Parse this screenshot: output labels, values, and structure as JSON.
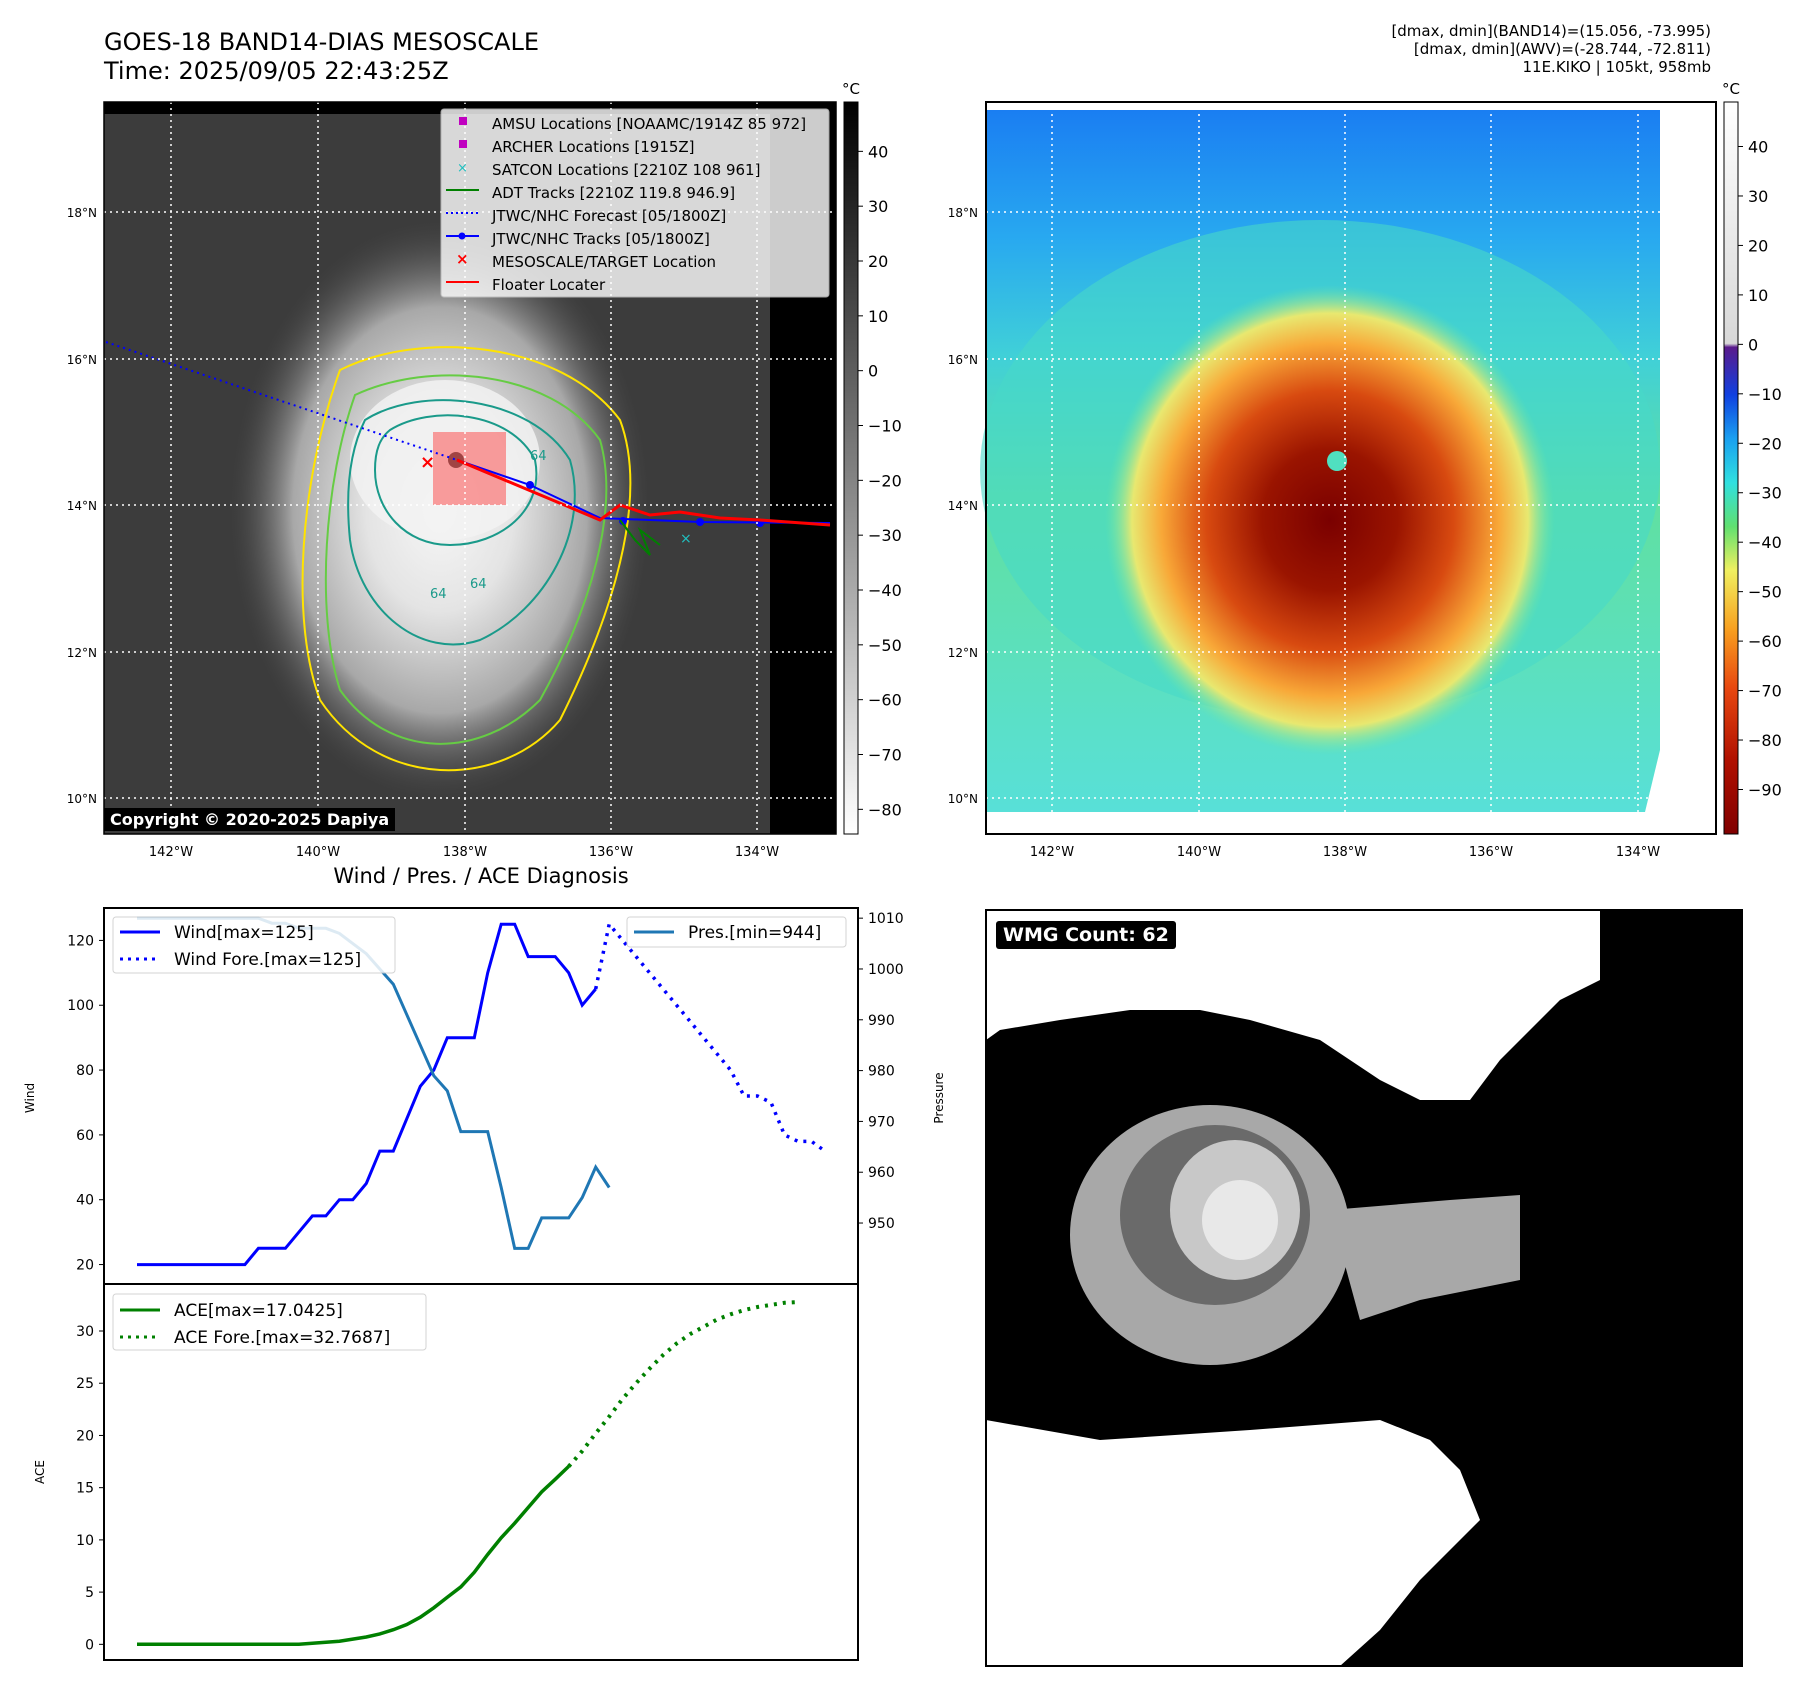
{
  "header": {
    "title_line1": "GOES-18 BAND14-DIAS MESOSCALE",
    "title_line2": "Time: 2025/09/05 22:43:25Z",
    "info_line1": "[dmax, dmin](BAND14)=(15.056, -73.995)",
    "info_line2": "[dmax, dmin](AWV)=(-28.744, -72.811)",
    "info_line3": "11E.KIKO | 105kt, 958mb"
  },
  "map_axes": {
    "lat_labels": [
      "18°N",
      "16°N",
      "14°N",
      "12°N",
      "10°N"
    ],
    "lon_labels": [
      "142°W",
      "140°W",
      "138°W",
      "136°W",
      "134°W"
    ],
    "unit": "°C"
  },
  "colorbar_left": {
    "ticks": [
      "40",
      "30",
      "20",
      "10",
      "0",
      "−10",
      "−20",
      "−30",
      "−40",
      "−50",
      "−60",
      "−70",
      "−80"
    ]
  },
  "colorbar_right": {
    "ticks": [
      "40",
      "30",
      "20",
      "10",
      "0",
      "−10",
      "−20",
      "−30",
      "−40",
      "−50",
      "−60",
      "−70",
      "−80",
      "−90"
    ]
  },
  "legend": [
    {
      "label": "AMSU Locations [NOAAMC/1914Z 85 972]",
      "color": "#c000c0",
      "marker": "square"
    },
    {
      "label": "ARCHER Locations [1915Z]",
      "color": "#c000c0",
      "marker": "square"
    },
    {
      "label": "SATCON Locations [2210Z 108 961]",
      "color": "#20c0c0",
      "marker": "x"
    },
    {
      "label": "ADT Tracks [2210Z 119.8 946.9]",
      "color": "#008000",
      "marker": "line"
    },
    {
      "label": "JTWC/NHC Forecast [05/1800Z]",
      "color": "#0000ff",
      "marker": "dotted"
    },
    {
      "label": "JTWC/NHC Tracks [05/1800Z]",
      "color": "#0000ff",
      "marker": "line-dot"
    },
    {
      "label": "MESOSCALE/TARGET Location",
      "color": "#ff0000",
      "marker": "x"
    },
    {
      "label": "Floater Locater",
      "color": "#ff0000",
      "marker": "line"
    }
  ],
  "copyright": "Copyright © 2020-2025 Dapiya",
  "contour_labels": [
    "64",
    "64",
    "64"
  ],
  "wmg_label": "WMG Count: 62",
  "colors": {
    "wind": "#0000ff",
    "pressure": "#1f77b4",
    "ace": "#008000"
  },
  "chart_data": [
    {
      "type": "line",
      "title": "Wind / Pres. / ACE Diagnosis",
      "ylabel": "Wind",
      "ylabel_right": "Pressure",
      "ylim": [
        14,
        130
      ],
      "ylim_right": [
        938,
        1012
      ],
      "yticks": [
        "120",
        "100",
        "80",
        "60",
        "40",
        "20"
      ],
      "yticks_right": [
        "1010",
        "1000",
        "990",
        "980",
        "970",
        "960",
        "950"
      ],
      "series": [
        {
          "name": "Wind[max=125]",
          "values": [
            20,
            20,
            20,
            20,
            20,
            20,
            20,
            20,
            20,
            25,
            25,
            25,
            30,
            35,
            35,
            40,
            40,
            45,
            55,
            55,
            65,
            75,
            80,
            90,
            90,
            90,
            110,
            125,
            125,
            115,
            115,
            115,
            110,
            100,
            105
          ]
        },
        {
          "name": "Wind Fore.[max=125]",
          "values": [
            null,
            null,
            null,
            null,
            null,
            null,
            null,
            null,
            null,
            null,
            null,
            null,
            null,
            null,
            null,
            null,
            null,
            null,
            null,
            null,
            null,
            null,
            null,
            null,
            null,
            null,
            null,
            null,
            null,
            null,
            null,
            null,
            null,
            null,
            105,
            125,
            120,
            115,
            110,
            105,
            100,
            95,
            90,
            85,
            80,
            72,
            72,
            70,
            60,
            58,
            58,
            55
          ]
        },
        {
          "name": "Pres.[min=944]",
          "values": [
            1010,
            1010,
            1010,
            1010,
            1010,
            1010,
            1010,
            1010,
            1010,
            1010,
            1009,
            1009,
            1008,
            1008,
            1008,
            1007,
            1005,
            1003,
            1000,
            997,
            991,
            985,
            979,
            976,
            968,
            968,
            968,
            957,
            945,
            945,
            951,
            951,
            951,
            955,
            961,
            957
          ]
        }
      ]
    },
    {
      "type": "line",
      "ylabel": "ACE",
      "ylim": [
        -1.5,
        34.5
      ],
      "yticks": [
        "30",
        "25",
        "20",
        "15",
        "10",
        "5",
        "0"
      ],
      "series": [
        {
          "name": "ACE[max=17.0425]",
          "values": [
            0,
            0,
            0,
            0,
            0,
            0,
            0,
            0,
            0,
            0,
            0,
            0,
            0,
            0.1,
            0.2,
            0.3,
            0.5,
            0.7,
            1.0,
            1.4,
            1.9,
            2.6,
            3.5,
            4.5,
            5.5,
            6.9,
            8.6,
            10.2,
            11.6,
            13.1,
            14.6,
            15.8,
            17.04
          ]
        },
        {
          "name": "ACE Fore.[max=32.7687]",
          "values": [
            null,
            null,
            null,
            null,
            null,
            null,
            null,
            null,
            null,
            null,
            null,
            null,
            null,
            null,
            null,
            null,
            null,
            null,
            null,
            null,
            null,
            null,
            null,
            null,
            null,
            null,
            null,
            null,
            null,
            null,
            null,
            null,
            17.04,
            18.5,
            20.2,
            21.8,
            23.5,
            25.0,
            26.4,
            27.7,
            28.8,
            29.7,
            30.4,
            31.1,
            31.6,
            32.0,
            32.3,
            32.5,
            32.7,
            32.77
          ]
        }
      ]
    }
  ]
}
